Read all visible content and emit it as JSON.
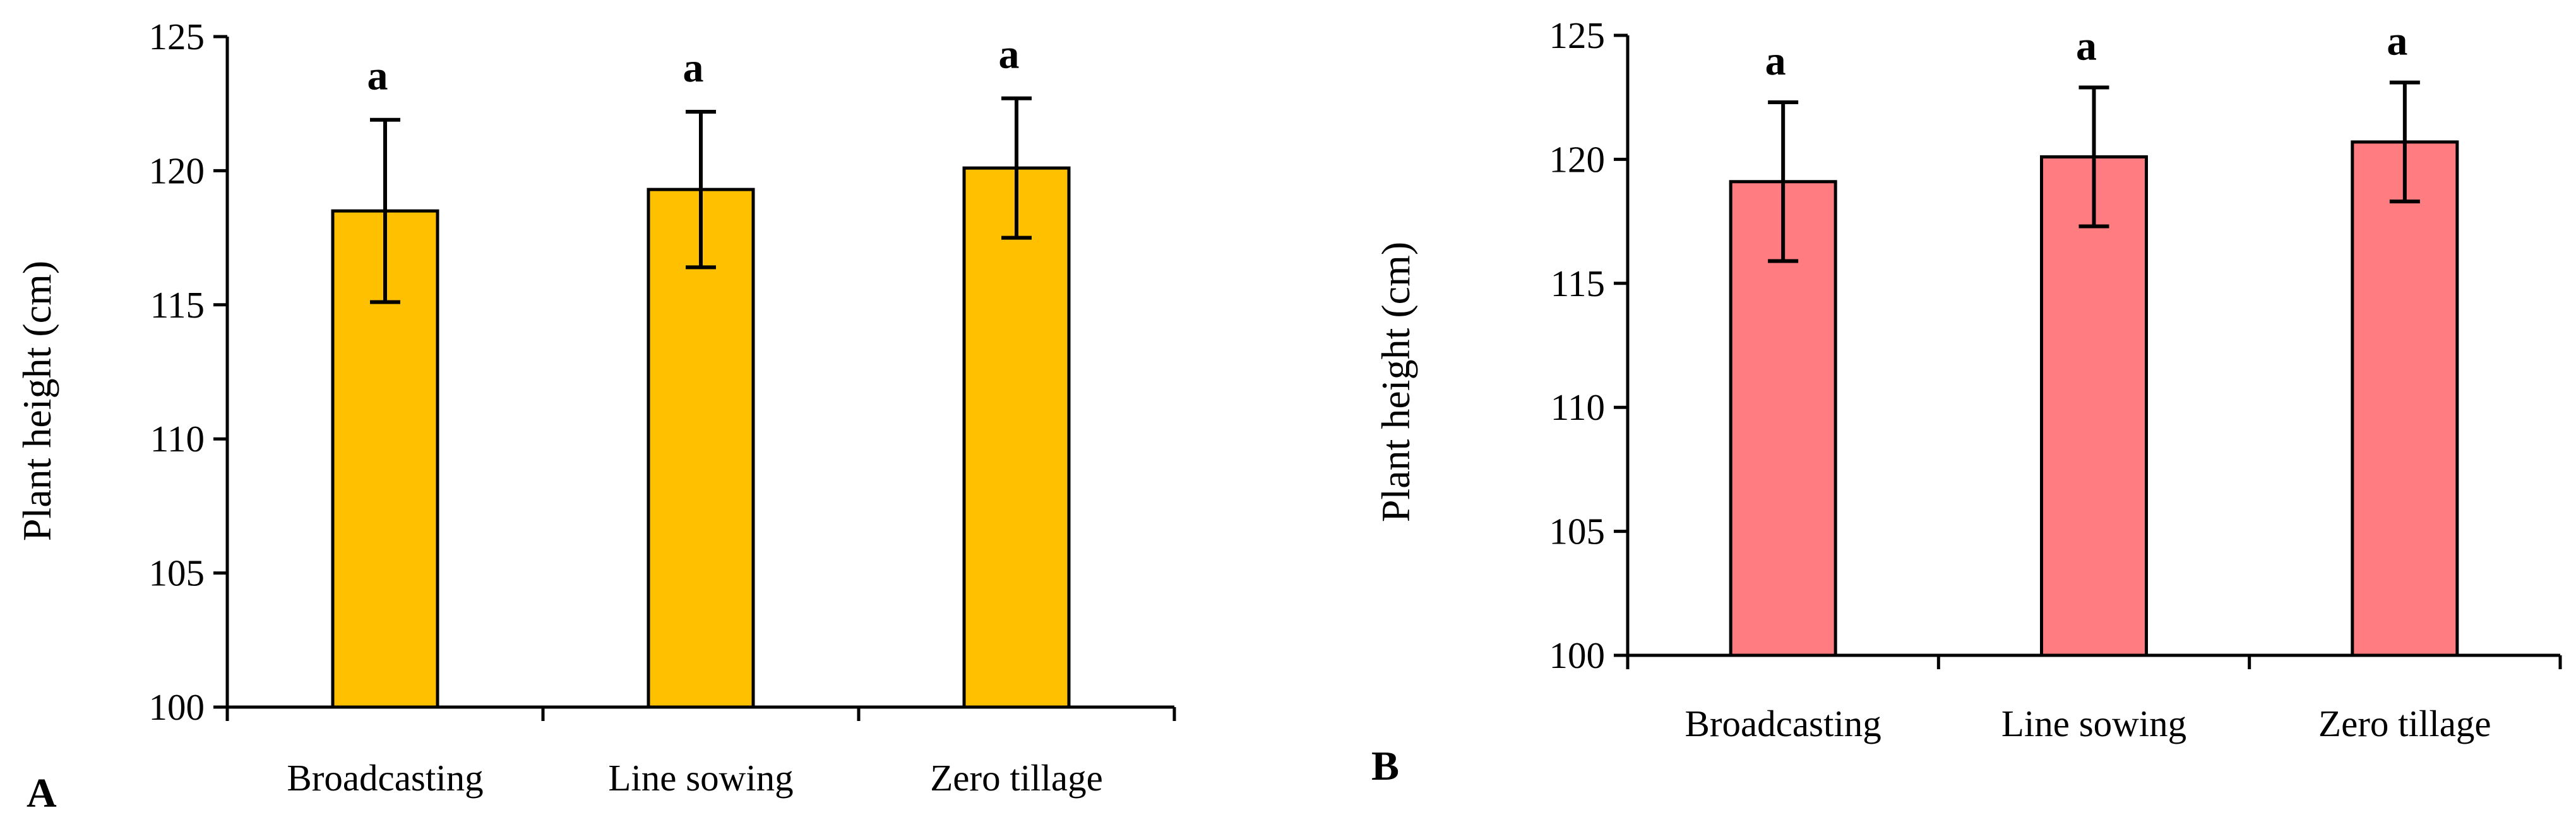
{
  "chart_data": [
    {
      "type": "bar",
      "panel_label": "A",
      "categories": [
        "Broadcasting",
        "Line sowing",
        "Zero tillage"
      ],
      "values": [
        118.5,
        119.3,
        120.1
      ],
      "errors": [
        3.4,
        2.9,
        2.6
      ],
      "significance": [
        "a",
        "a",
        "a"
      ],
      "ylabel": "Plant height (cm)",
      "xlabel": "",
      "ylim": [
        100,
        125
      ],
      "yticks": [
        "100",
        "105",
        "110",
        "115",
        "120",
        "125"
      ],
      "bar_color": "#FFC000",
      "grid": false
    },
    {
      "type": "bar",
      "panel_label": "B",
      "categories": [
        "Broadcasting",
        "Line sowing",
        "Zero tillage"
      ],
      "values": [
        119.1,
        120.1,
        120.7
      ],
      "errors": [
        3.2,
        2.8,
        2.4
      ],
      "significance": [
        "a",
        "a",
        "a"
      ],
      "ylabel": "Plant height (cm)",
      "xlabel": "",
      "ylim": [
        100,
        125
      ],
      "yticks": [
        "100",
        "105",
        "110",
        "115",
        "120",
        "125"
      ],
      "bar_color": "#FF7C80",
      "grid": false
    }
  ]
}
